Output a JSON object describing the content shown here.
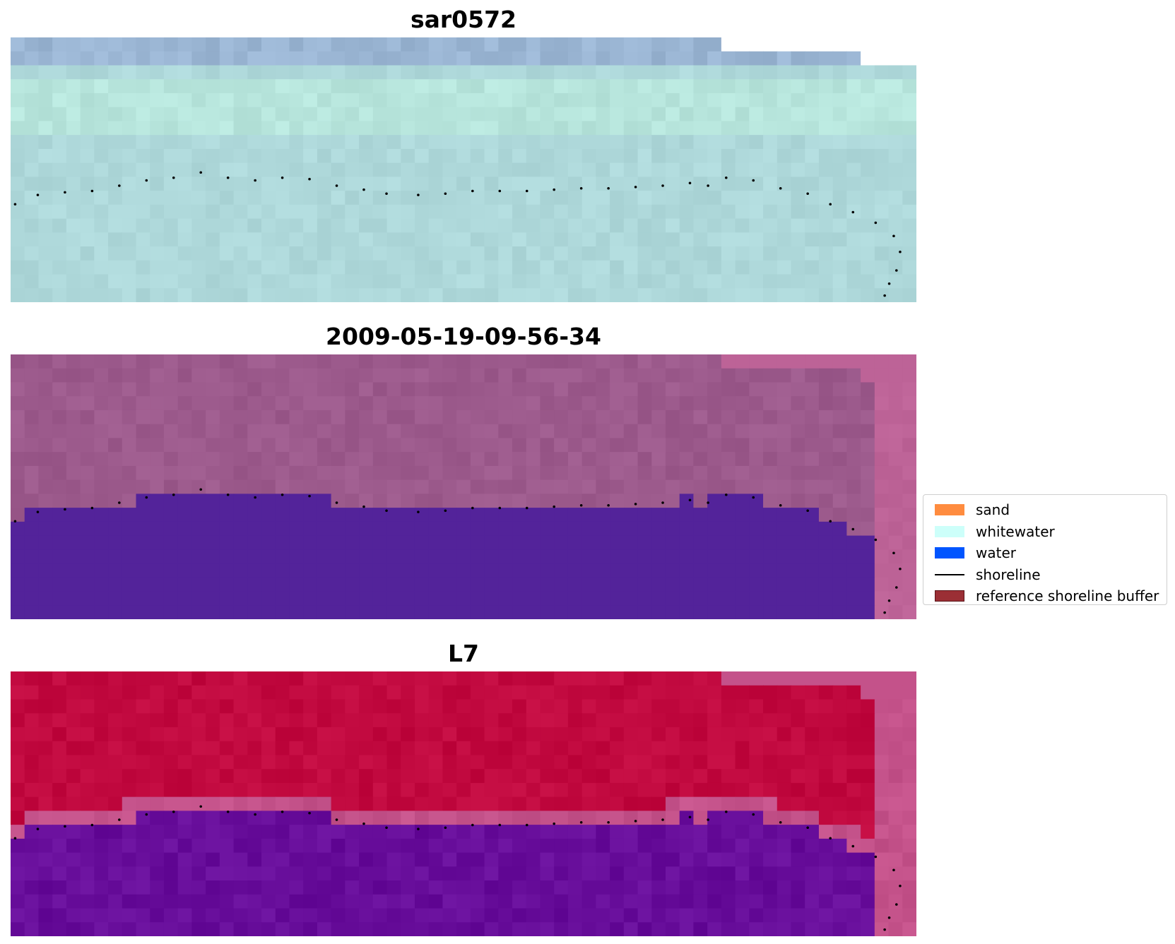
{
  "panels": [
    {
      "title": "sar0572",
      "style": "rgb"
    },
    {
      "title": "2009-05-19-09-56-34",
      "style": "class"
    },
    {
      "title": "L7",
      "style": "index"
    }
  ],
  "legend": {
    "items": [
      {
        "label": "sand",
        "kind": "patch",
        "color": "#ff8c3f"
      },
      {
        "label": "whitewater",
        "kind": "patch",
        "color": "#cdfffa"
      },
      {
        "label": "water",
        "kind": "patch",
        "color": "#0055ff"
      },
      {
        "label": "shoreline",
        "kind": "line",
        "color": "#000000"
      },
      {
        "label": "reference shoreline buffer",
        "kind": "patch",
        "color": "#9b2f35"
      }
    ]
  },
  "colors": {
    "rgb_base": "#aed8da",
    "rgb_band_light": "#bdeede",
    "rgb_top_band": "#9ab5d3",
    "class_land": "#9c5a8c",
    "class_water": "#53239a",
    "class_nodata": "#bd6397",
    "index_land": "#c1093f",
    "index_mid": "#c4528a",
    "index_water": "#670d9a",
    "shoreline_dots": "#000000"
  },
  "shoreline_points": [
    [
      0.005,
      0.37
    ],
    [
      0.03,
      0.405
    ],
    [
      0.06,
      0.415
    ],
    [
      0.09,
      0.42
    ],
    [
      0.12,
      0.44
    ],
    [
      0.15,
      0.46
    ],
    [
      0.18,
      0.47
    ],
    [
      0.21,
      0.49
    ],
    [
      0.24,
      0.47
    ],
    [
      0.27,
      0.46
    ],
    [
      0.3,
      0.47
    ],
    [
      0.33,
      0.465
    ],
    [
      0.36,
      0.44
    ],
    [
      0.39,
      0.425
    ],
    [
      0.415,
      0.41
    ],
    [
      0.45,
      0.405
    ],
    [
      0.48,
      0.41
    ],
    [
      0.51,
      0.42
    ],
    [
      0.54,
      0.42
    ],
    [
      0.57,
      0.42
    ],
    [
      0.6,
      0.425
    ],
    [
      0.63,
      0.43
    ],
    [
      0.66,
      0.43
    ],
    [
      0.69,
      0.435
    ],
    [
      0.72,
      0.44
    ],
    [
      0.75,
      0.45
    ],
    [
      0.77,
      0.44
    ],
    [
      0.79,
      0.47
    ],
    [
      0.82,
      0.46
    ],
    [
      0.85,
      0.43
    ],
    [
      0.88,
      0.41
    ],
    [
      0.905,
      0.37
    ],
    [
      0.93,
      0.34
    ],
    [
      0.955,
      0.3
    ],
    [
      0.975,
      0.25
    ],
    [
      0.982,
      0.19
    ],
    [
      0.978,
      0.12
    ],
    [
      0.97,
      0.07
    ],
    [
      0.965,
      0.025
    ]
  ]
}
